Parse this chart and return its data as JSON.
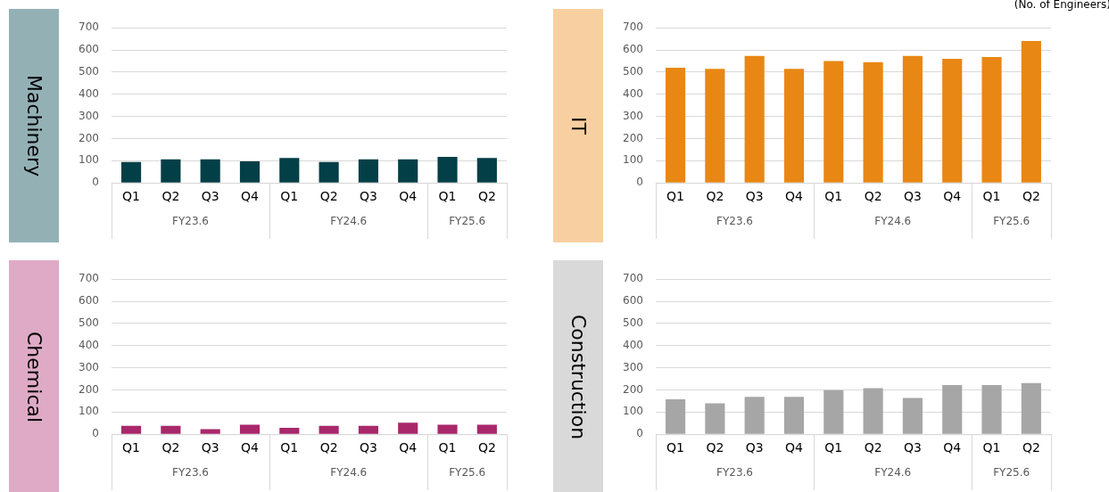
{
  "chart_data": [
    {
      "type": "bar",
      "title": "Machinery",
      "categories": [
        "Q1",
        "Q2",
        "Q3",
        "Q4",
        "Q1",
        "Q2",
        "Q3",
        "Q4",
        "Q1",
        "Q2"
      ],
      "values": [
        94,
        106,
        106,
        97,
        112,
        94,
        106,
        106,
        117,
        112
      ],
      "color": "#033f47",
      "ylim": [
        0,
        700
      ],
      "yticks": [
        0,
        100,
        200,
        300,
        400,
        500,
        600,
        700
      ],
      "grid": "y",
      "annotations": [
        "FY23.6",
        "FY24.6",
        "FY25.6"
      ]
    },
    {
      "type": "bar",
      "title": "IT",
      "ylabel": "(No. of Engineers)",
      "categories": [
        "Q1",
        "Q2",
        "Q3",
        "Q4",
        "Q1",
        "Q2",
        "Q3",
        "Q4",
        "Q1",
        "Q2"
      ],
      "values": [
        520,
        515,
        573,
        515,
        550,
        545,
        573,
        560,
        568,
        640
      ],
      "color": "#e88714",
      "ylim": [
        0,
        700
      ],
      "yticks": [
        0,
        100,
        200,
        300,
        400,
        500,
        600,
        700
      ],
      "grid": "y",
      "annotations": [
        "FY23.6",
        "FY24.6",
        "FY25.6"
      ]
    },
    {
      "type": "bar",
      "title": "Chemical",
      "categories": [
        "Q1",
        "Q2",
        "Q3",
        "Q4",
        "Q1",
        "Q2",
        "Q3",
        "Q4",
        "Q1",
        "Q2"
      ],
      "values": [
        38,
        38,
        23,
        43,
        29,
        38,
        38,
        52,
        43,
        43
      ],
      "color": "#a8286a",
      "ylim": [
        0,
        700
      ],
      "yticks": [
        0,
        100,
        200,
        300,
        400,
        500,
        600,
        700
      ],
      "grid": "y",
      "annotations": [
        "FY23.6",
        "FY24.6",
        "FY25.6"
      ]
    },
    {
      "type": "bar",
      "title": "Construction",
      "categories": [
        "Q1",
        "Q2",
        "Q3",
        "Q4",
        "Q1",
        "Q2",
        "Q3",
        "Q4",
        "Q1",
        "Q2"
      ],
      "values": [
        158,
        140,
        169,
        169,
        199,
        208,
        164,
        222,
        222,
        231
      ],
      "color": "#a6a6a6",
      "ylim": [
        0,
        700
      ],
      "yticks": [
        0,
        100,
        200,
        300,
        400,
        500,
        600,
        700
      ],
      "grid": "y",
      "annotations": [
        "FY23.6",
        "FY24.6",
        "FY25.6"
      ]
    }
  ]
}
